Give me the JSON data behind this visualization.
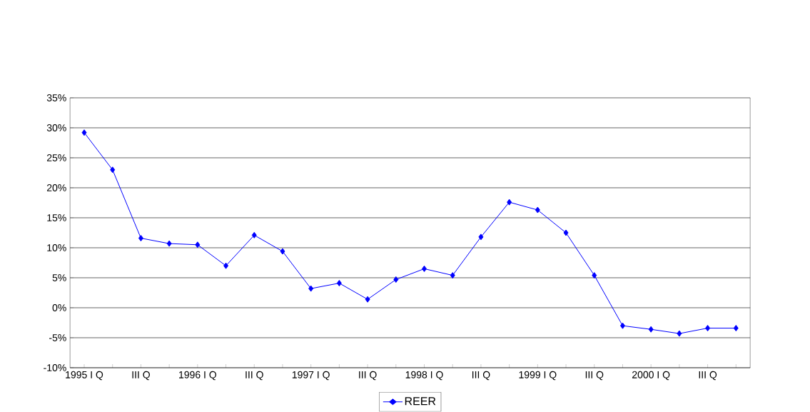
{
  "chart_data": {
    "type": "line",
    "categories": [
      "1995 I Q",
      null,
      "III Q",
      null,
      "1996 I Q",
      null,
      "III Q",
      null,
      "1997 I Q",
      null,
      "III Q",
      null,
      "1998 I Q",
      null,
      "III Q",
      null,
      "1999 I Q",
      null,
      "III Q",
      null,
      "2000 I Q",
      null,
      "III Q",
      null
    ],
    "series": [
      {
        "name": "REER",
        "color": "#0000ff",
        "values": [
          29.2,
          23.0,
          11.6,
          10.7,
          10.5,
          7.0,
          12.1,
          9.4,
          3.2,
          4.1,
          1.4,
          4.7,
          6.5,
          5.4,
          11.8,
          17.6,
          16.3,
          12.5,
          5.4,
          -3.0,
          -3.6,
          -4.3,
          -3.4,
          -3.4
        ]
      }
    ],
    "ylim": [
      -10,
      35
    ],
    "yticks": [
      {
        "value": -10,
        "label": "-10%"
      },
      {
        "value": -5,
        "label": "-5%"
      },
      {
        "value": 0,
        "label": "0%"
      },
      {
        "value": 5,
        "label": "5%"
      },
      {
        "value": 10,
        "label": "10%"
      },
      {
        "value": 15,
        "label": "15%"
      },
      {
        "value": 20,
        "label": "20%"
      },
      {
        "value": 25,
        "label": "25%"
      },
      {
        "value": 30,
        "label": "30%"
      },
      {
        "value": 35,
        "label": "35%"
      }
    ],
    "grid": "y",
    "legend": "bottom",
    "marker": "diamond"
  }
}
